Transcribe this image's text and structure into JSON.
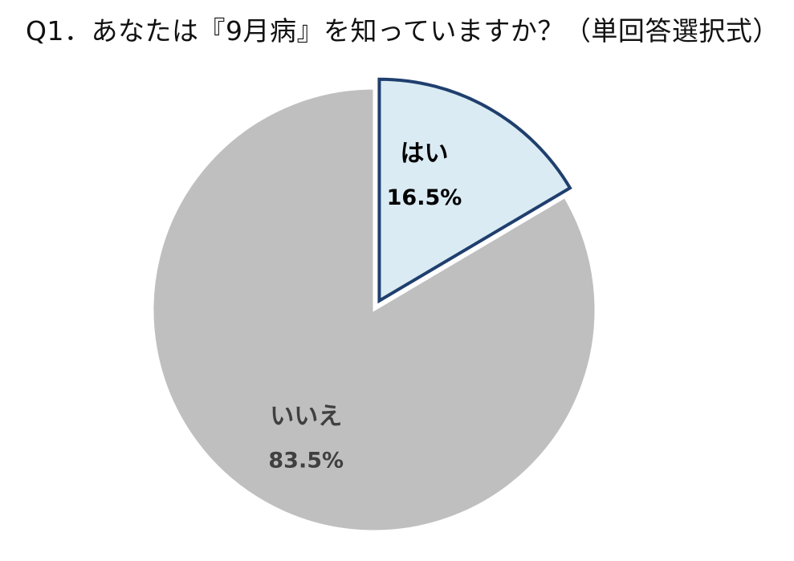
{
  "chart_data": {
    "type": "pie",
    "title": "Q1．あなたは『9月病』を知っていますか？（単回答選択式）",
    "slices": [
      {
        "label": "はい",
        "percent_label": "16.5%",
        "value": 16.5,
        "color": "#DAEBF3",
        "stroke": "#1F3F6E",
        "exploded": true,
        "label_color": "#000000"
      },
      {
        "label": "いいえ",
        "percent_label": "83.5%",
        "value": 83.5,
        "color": "#BFBFBF",
        "stroke": "#FFFFFF",
        "exploded": false,
        "label_color": "#404040"
      }
    ],
    "start_angle": "12 o'clock",
    "direction": "clockwise",
    "legend": "none",
    "data_labels": "inside slices"
  }
}
